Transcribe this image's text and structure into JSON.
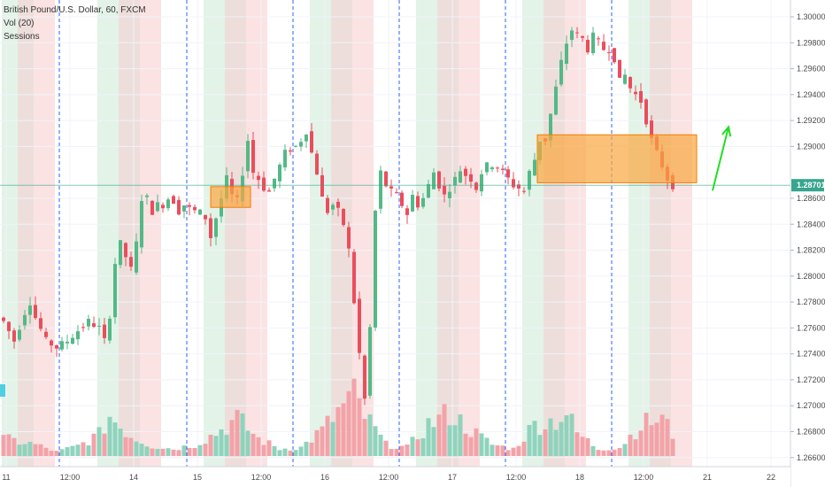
{
  "legend": {
    "symbol_line": "British Pound/U.S. Dollar, 60, FXCM",
    "volume_line": "Vol (20)",
    "sessions_line": "Sessions"
  },
  "price_axis": {
    "ticks": [
      "1.30000",
      "1.29800",
      "1.29600",
      "1.29400",
      "1.29200",
      "1.29000",
      "1.28600",
      "1.28400",
      "1.28200",
      "1.28000",
      "1.27800",
      "1.27600",
      "1.27400",
      "1.27200",
      "1.27000",
      "1.26800",
      "1.26600"
    ],
    "tick_values": [
      1.3,
      1.298,
      1.296,
      1.294,
      1.292,
      1.29,
      1.286,
      1.284,
      1.282,
      1.28,
      1.278,
      1.276,
      1.274,
      1.272,
      1.27,
      1.268,
      1.266
    ],
    "current_price_label": "1.28701",
    "current_price": 1.28701
  },
  "time_axis": {
    "labels": [
      "11",
      "12:00",
      "14",
      "15",
      "12:00",
      "16",
      "12:00",
      "17",
      "12:00",
      "18",
      "12:00",
      "21",
      "22"
    ],
    "positions": [
      0.5,
      12.5,
      24.5,
      36.5,
      48.5,
      60.5,
      72.5,
      84.5,
      96.5,
      108.5,
      120.5,
      132.5,
      144.5
    ]
  },
  "colors": {
    "bull": "#53b987",
    "bear": "#eb4d5c",
    "bull_vol": "#8fd3bd",
    "bear_vol": "#f3a3a8",
    "session_green": "#e3f3e8",
    "session_red": "#fbe3e3",
    "session_brown": "#eddedb",
    "zone_fill": "#f9a73e",
    "day_divider": "#2962ff",
    "price_line": "#37a58f",
    "arrow": "#22dd22",
    "axis_text": "#4a4a4a"
  },
  "chart_data": {
    "type": "candlestick",
    "title": "British Pound/U.S. Dollar, 60, FXCM",
    "y_range": [
      1.2653,
      1.3013
    ],
    "x_range": [
      0,
      150
    ],
    "volume_indicator": "Vol (20)",
    "day_dividers": [
      10.5,
      34.5,
      54.5,
      74.5,
      94.5,
      114.5
    ],
    "session_bands": [
      {
        "start": 0,
        "end": 3,
        "kind": "green"
      },
      {
        "start": 3,
        "end": 6,
        "kind": "brown"
      },
      {
        "start": 6,
        "end": 10,
        "kind": "red"
      },
      {
        "start": 18,
        "end": 22,
        "kind": "green"
      },
      {
        "start": 22,
        "end": 26,
        "kind": "brown"
      },
      {
        "start": 26,
        "end": 30,
        "kind": "red"
      },
      {
        "start": 38,
        "end": 42,
        "kind": "green"
      },
      {
        "start": 42,
        "end": 46,
        "kind": "brown"
      },
      {
        "start": 46,
        "end": 50,
        "kind": "red"
      },
      {
        "start": 58,
        "end": 62,
        "kind": "green"
      },
      {
        "start": 62,
        "end": 66,
        "kind": "brown"
      },
      {
        "start": 66,
        "end": 70,
        "kind": "red"
      },
      {
        "start": 78,
        "end": 82,
        "kind": "green"
      },
      {
        "start": 82,
        "end": 86,
        "kind": "brown"
      },
      {
        "start": 86,
        "end": 90,
        "kind": "red"
      },
      {
        "start": 98,
        "end": 102,
        "kind": "green"
      },
      {
        "start": 102,
        "end": 106,
        "kind": "brown"
      },
      {
        "start": 106,
        "end": 110,
        "kind": "red"
      },
      {
        "start": 118,
        "end": 122,
        "kind": "green"
      },
      {
        "start": 122,
        "end": 126,
        "kind": "brown"
      },
      {
        "start": 126,
        "end": 130,
        "kind": "red"
      }
    ],
    "zones": [
      {
        "x_start": 39,
        "x_end": 46.5,
        "y_low": 1.2853,
        "y_high": 1.2869
      },
      {
        "x_start": 100.5,
        "x_end": 130.5,
        "y_low": 1.2872,
        "y_high": 1.2909
      }
    ],
    "close_path": [
      [
        0,
        1.2765
      ],
      [
        2,
        1.275
      ],
      [
        4,
        1.2772
      ],
      [
        5,
        1.278
      ],
      [
        6,
        1.2768
      ],
      [
        8,
        1.275
      ],
      [
        10,
        1.2745
      ],
      [
        12,
        1.275
      ],
      [
        14,
        1.2758
      ],
      [
        16,
        1.2765
      ],
      [
        18,
        1.276
      ],
      [
        19,
        1.275
      ],
      [
        20,
        1.277
      ],
      [
        21,
        1.281
      ],
      [
        22,
        1.2825
      ],
      [
        23,
        1.2815
      ],
      [
        24,
        1.2805
      ],
      [
        25,
        1.2825
      ],
      [
        26,
        1.286
      ],
      [
        27,
        1.286
      ],
      [
        28,
        1.285
      ],
      [
        29,
        1.2855
      ],
      [
        30,
        1.2855
      ],
      [
        31,
        1.286
      ],
      [
        32,
        1.2858
      ],
      [
        33,
        1.285
      ],
      [
        34,
        1.2855
      ],
      [
        35,
        1.2852
      ],
      [
        36,
        1.285
      ],
      [
        37,
        1.2849
      ],
      [
        38,
        1.2845
      ],
      [
        39,
        1.283
      ],
      [
        40,
        1.2845
      ],
      [
        41,
        1.286
      ],
      [
        42,
        1.2875
      ],
      [
        43,
        1.2862
      ],
      [
        44,
        1.2858
      ],
      [
        45,
        1.288
      ],
      [
        46,
        1.2905
      ],
      [
        47,
        1.288
      ],
      [
        48,
        1.2875
      ],
      [
        49,
        1.2868
      ],
      [
        50,
        1.2865
      ],
      [
        51,
        1.2875
      ],
      [
        52,
        1.2885
      ],
      [
        53,
        1.2895
      ],
      [
        54,
        1.2898
      ],
      [
        55,
        1.29
      ],
      [
        56,
        1.2905
      ],
      [
        57,
        1.2912
      ],
      [
        58,
        1.2895
      ],
      [
        59,
        1.288
      ],
      [
        60,
        1.286
      ],
      [
        61,
        1.285
      ],
      [
        62,
        1.2855
      ],
      [
        63,
        1.285
      ],
      [
        64,
        1.284
      ],
      [
        65,
        1.282
      ],
      [
        66,
        1.278
      ],
      [
        67,
        1.274
      ],
      [
        68,
        1.2705
      ],
      [
        69,
        1.276
      ],
      [
        70,
        1.285
      ],
      [
        71,
        1.288
      ],
      [
        72,
        1.287
      ],
      [
        73,
        1.2865
      ],
      [
        74,
        1.2862
      ],
      [
        75,
        1.2855
      ],
      [
        76,
        1.2848
      ],
      [
        77,
        1.2862
      ],
      [
        78,
        1.2855
      ],
      [
        79,
        1.286
      ],
      [
        80,
        1.287
      ],
      [
        81,
        1.288
      ],
      [
        82,
        1.287
      ],
      [
        83,
        1.2862
      ],
      [
        84,
        1.2868
      ],
      [
        85,
        1.2875
      ],
      [
        86,
        1.2882
      ],
      [
        87,
        1.2878
      ],
      [
        88,
        1.2875
      ],
      [
        89,
        1.2868
      ],
      [
        90,
        1.288
      ],
      [
        91,
        1.2885
      ],
      [
        92,
        1.2886
      ],
      [
        93,
        1.2884
      ],
      [
        94,
        1.288
      ],
      [
        95,
        1.2875
      ],
      [
        96,
        1.287
      ],
      [
        97,
        1.2868
      ],
      [
        98,
        1.2865
      ],
      [
        99,
        1.288
      ],
      [
        100,
        1.289
      ],
      [
        101,
        1.2905
      ],
      [
        102,
        1.2905
      ],
      [
        103,
        1.2925
      ],
      [
        104,
        1.2945
      ],
      [
        105,
        1.2965
      ],
      [
        106,
        1.298
      ],
      [
        107,
        1.299
      ],
      [
        108,
        1.2986
      ],
      [
        109,
        1.2983
      ],
      [
        110,
        1.2975
      ],
      [
        111,
        1.2985
      ],
      [
        112,
        1.298
      ],
      [
        113,
        1.2975
      ],
      [
        114,
        1.2975
      ],
      [
        115,
        1.2968
      ],
      [
        116,
        1.295
      ],
      [
        117,
        1.2955
      ],
      [
        118,
        1.2945
      ],
      [
        119,
        1.294
      ],
      [
        120,
        1.2935
      ],
      [
        121,
        1.292
      ],
      [
        122,
        1.2905
      ],
      [
        123,
        1.2895
      ],
      [
        124,
        1.2885
      ],
      [
        125,
        1.2875
      ],
      [
        126,
        1.287
      ]
    ],
    "volume_range": [
      0,
      50
    ],
    "volume_peaks": [
      [
        0,
        12
      ],
      [
        6,
        8
      ],
      [
        10,
        3
      ],
      [
        14,
        7
      ],
      [
        18,
        15
      ],
      [
        20,
        28
      ],
      [
        24,
        14
      ],
      [
        28,
        7
      ],
      [
        32,
        5
      ],
      [
        36,
        8
      ],
      [
        40,
        16
      ],
      [
        44,
        26
      ],
      [
        48,
        12
      ],
      [
        52,
        5
      ],
      [
        56,
        6
      ],
      [
        60,
        18
      ],
      [
        64,
        35
      ],
      [
        66,
        42
      ],
      [
        68,
        28
      ],
      [
        72,
        8
      ],
      [
        76,
        6
      ],
      [
        80,
        22
      ],
      [
        84,
        30
      ],
      [
        88,
        18
      ],
      [
        92,
        8
      ],
      [
        96,
        5
      ],
      [
        100,
        22
      ],
      [
        104,
        25
      ],
      [
        106,
        30
      ],
      [
        108,
        16
      ],
      [
        112,
        5
      ],
      [
        116,
        6
      ],
      [
        120,
        22
      ],
      [
        124,
        26
      ],
      [
        126,
        15
      ]
    ],
    "arrow": {
      "from": [
        133.5,
        1.2866
      ],
      "to": [
        136.5,
        1.2915
      ]
    }
  }
}
